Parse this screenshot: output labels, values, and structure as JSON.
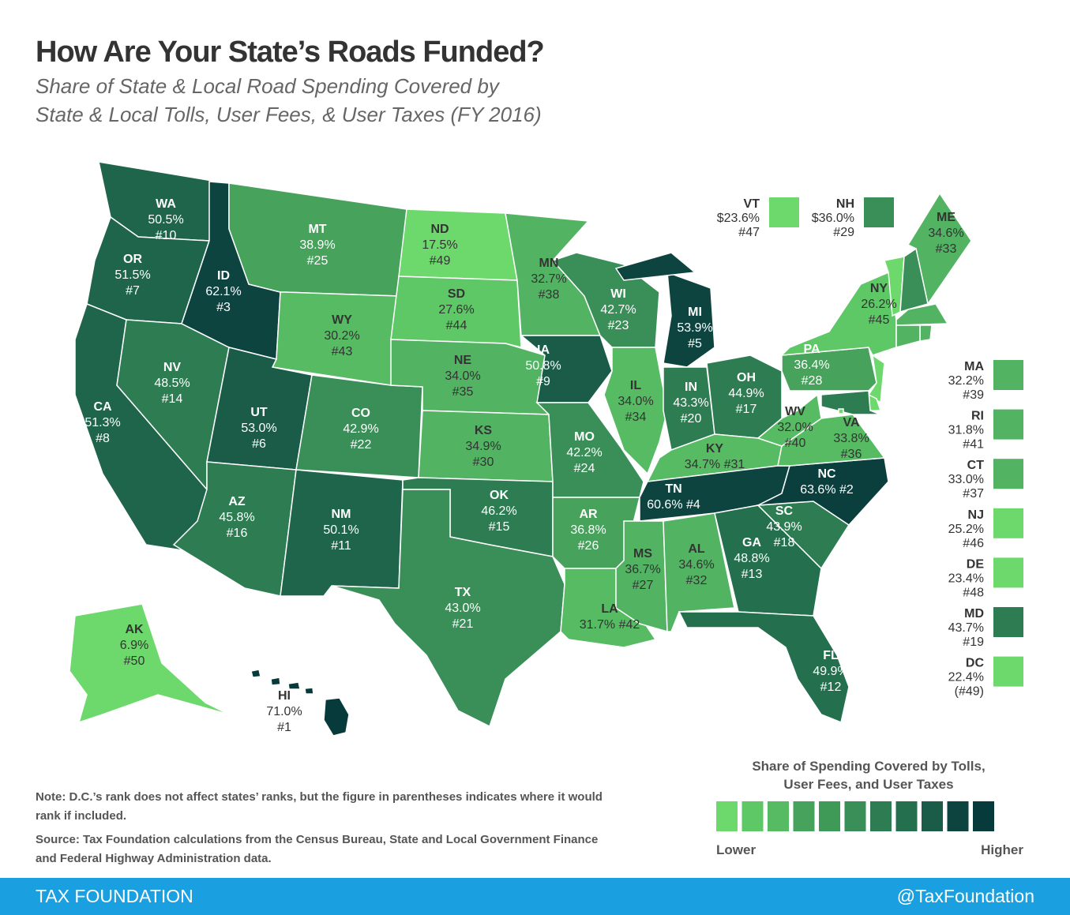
{
  "header": {
    "title": "How Are Your State’s Roads Funded?",
    "subtitle": [
      "Share of State & Local Road Spending Covered by",
      "State & Local Tolls, User Fees, & User Taxes (FY 2016)"
    ]
  },
  "states": [
    {
      "abbr": "WA",
      "value": "50.5%",
      "rank": "#10",
      "color": "#1f654b"
    },
    {
      "abbr": "OR",
      "value": "51.5%",
      "rank": "#7",
      "color": "#1f654b"
    },
    {
      "abbr": "CA",
      "value": "51.3%",
      "rank": "#8",
      "color": "#1f654b"
    },
    {
      "abbr": "NV",
      "value": "48.5%",
      "rank": "#14",
      "color": "#2e7c52"
    },
    {
      "abbr": "ID",
      "value": "62.1%",
      "rank": "#3",
      "color": "#0d4440"
    },
    {
      "abbr": "MT",
      "value": "38.9%",
      "rank": "#25",
      "color": "#47a25c"
    },
    {
      "abbr": "WY",
      "value": "30.2%",
      "rank": "#43",
      "color": "#56bb63"
    },
    {
      "abbr": "UT",
      "value": "53.0%",
      "rank": "#6",
      "color": "#1a5c48"
    },
    {
      "abbr": "AZ",
      "value": "45.8%",
      "rank": "#16",
      "color": "#2e7c52"
    },
    {
      "abbr": "CO",
      "value": "42.9%",
      "rank": "#22",
      "color": "#3a8e57"
    },
    {
      "abbr": "NM",
      "value": "50.1%",
      "rank": "#11",
      "color": "#1f654b"
    },
    {
      "abbr": "ND",
      "value": "17.5%",
      "rank": "#49",
      "color": "#6dd96c"
    },
    {
      "abbr": "SD",
      "value": "27.6%",
      "rank": "#44",
      "color": "#5ec766"
    },
    {
      "abbr": "NE",
      "value": "34.0%",
      "rank": "#35",
      "color": "#52b363"
    },
    {
      "abbr": "KS",
      "value": "34.9%",
      "rank": "#30",
      "color": "#52b363"
    },
    {
      "abbr": "OK",
      "value": "46.2%",
      "rank": "#15",
      "color": "#2e7c52"
    },
    {
      "abbr": "TX",
      "value": "43.0%",
      "rank": "#21",
      "color": "#3a8e57"
    },
    {
      "abbr": "MN",
      "value": "32.7%",
      "rank": "#38",
      "color": "#52b363"
    },
    {
      "abbr": "IA",
      "value": "50.8%",
      "rank": "#9",
      "color": "#1a5c48"
    },
    {
      "abbr": "MO",
      "value": "42.2%",
      "rank": "#24",
      "color": "#3a8e57"
    },
    {
      "abbr": "AR",
      "value": "36.8%",
      "rank": "#26",
      "color": "#47a25c"
    },
    {
      "abbr": "LA",
      "value": "31.7%",
      "rank": "#42",
      "color": "#56bb63"
    },
    {
      "abbr": "WI",
      "value": "42.7%",
      "rank": "#23",
      "color": "#3a8e57"
    },
    {
      "abbr": "IL",
      "value": "34.0%",
      "rank": "#34",
      "color": "#56bb63"
    },
    {
      "abbr": "MI",
      "value": "53.9%",
      "rank": "#5",
      "color": "#0d4440"
    },
    {
      "abbr": "IN",
      "value": "43.3%",
      "rank": "#20",
      "color": "#2e7c52"
    },
    {
      "abbr": "OH",
      "value": "44.9%",
      "rank": "#17",
      "color": "#2e7c52"
    },
    {
      "abbr": "KY",
      "value": "34.7%",
      "rank": "#31",
      "color": "#56bb63"
    },
    {
      "abbr": "TN",
      "value": "60.6%",
      "rank": "#4",
      "color": "#0d4440"
    },
    {
      "abbr": "MS",
      "value": "36.7%",
      "rank": "#27",
      "color": "#52b363"
    },
    {
      "abbr": "AL",
      "value": "34.6%",
      "rank": "#32",
      "color": "#52b363"
    },
    {
      "abbr": "GA",
      "value": "48.8%",
      "rank": "#13",
      "color": "#24704e"
    },
    {
      "abbr": "FL",
      "value": "49.9%",
      "rank": "#12",
      "color": "#24704e"
    },
    {
      "abbr": "SC",
      "value": "43.9%",
      "rank": "#18",
      "color": "#2e7c52"
    },
    {
      "abbr": "NC",
      "value": "63.6%",
      "rank": "#2",
      "color": "#0b3f3e"
    },
    {
      "abbr": "VA",
      "value": "33.8%",
      "rank": "#36",
      "color": "#56bb63"
    },
    {
      "abbr": "WV",
      "value": "32.0%",
      "rank": "#40",
      "color": "#56bb63"
    },
    {
      "abbr": "PA",
      "value": "36.4%",
      "rank": "#28",
      "color": "#47a25c"
    },
    {
      "abbr": "NY",
      "value": "26.2%",
      "rank": "#45",
      "color": "#5ec766"
    },
    {
      "abbr": "ME",
      "value": "34.6%",
      "rank": "#33",
      "color": "#52b363"
    },
    {
      "abbr": "AK",
      "value": "6.9%",
      "rank": "#50",
      "color": "#6dd96c"
    },
    {
      "abbr": "HI",
      "value": "71.0%",
      "rank": "#1",
      "color": "#073a3a"
    }
  ],
  "small_states": [
    {
      "abbr": "VT",
      "value": "$23.6%",
      "rank": "#47",
      "color": "#6dd96c"
    },
    {
      "abbr": "NH",
      "value": "$36.0%",
      "rank": "#29",
      "color": "#3a8e57"
    },
    {
      "abbr": "MA",
      "value": "32.2%",
      "rank": "#39",
      "color": "#52b363"
    },
    {
      "abbr": "RI",
      "value": "31.8%",
      "rank": "#41",
      "color": "#52b363"
    },
    {
      "abbr": "CT",
      "value": "33.0%",
      "rank": "#37",
      "color": "#52b363"
    },
    {
      "abbr": "NJ",
      "value": "25.2%",
      "rank": "#46",
      "color": "#6dd96c"
    },
    {
      "abbr": "DE",
      "value": "23.4%",
      "rank": "#48",
      "color": "#6dd96c"
    },
    {
      "abbr": "MD",
      "value": "43.7%",
      "rank": "#19",
      "color": "#2e7c52"
    },
    {
      "abbr": "DC",
      "value": "22.4%",
      "rank": "(#49)",
      "color": "#6dd96c"
    }
  ],
  "legend": {
    "title": [
      "Share of Spending Covered by Tolls,",
      "User Fees, and User Taxes"
    ],
    "low": "Lower",
    "high": "Higher",
    "colors": [
      "#6dd96c",
      "#5ec766",
      "#56bb63",
      "#47a25c",
      "#3f9a58",
      "#3a8e57",
      "#2e7c52",
      "#24704e",
      "#1a5c48",
      "#0d4440",
      "#073a3a"
    ]
  },
  "notes": [
    "Note: D.C.’s rank does not affect states’ ranks, but the figure in parentheses indicates where it would rank if included.",
    "Source: Tax Foundation calculations from the Census Bureau, State and Local Government Finance and Federal Highway Administration data."
  ],
  "footer": {
    "brand": "TAX FOUNDATION",
    "handle": "@TaxFoundation"
  }
}
